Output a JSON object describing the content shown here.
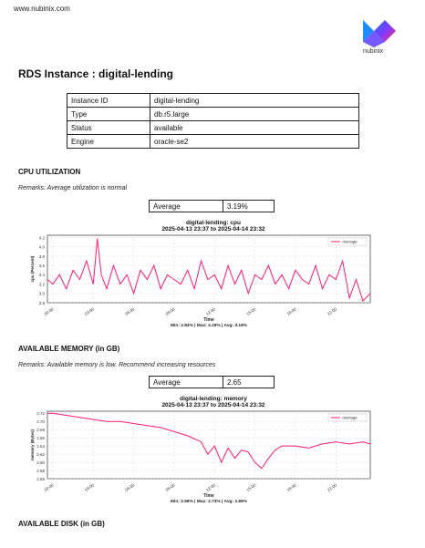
{
  "header": {
    "url": "www.nubinix.com",
    "logo_text": "nubinix"
  },
  "page_title": "RDS Instance : digital-lending",
  "instance_table": [
    {
      "label": "Instance ID",
      "value": "digital-lending"
    },
    {
      "label": "Type",
      "value": "db.r5.large"
    },
    {
      "label": "Status",
      "value": "available"
    },
    {
      "label": "Engine",
      "value": "oracle-se2"
    }
  ],
  "cpu": {
    "heading": "CPU UTILIZATION",
    "remarks": "Remarks: Average utilization is normal",
    "avg_label": "Average",
    "avg_value": "3.19%"
  },
  "memory": {
    "heading": "AVAILABLE MEMORY (in GB)",
    "remarks": "Remarks: Available memory is low. Recommend increasing resources",
    "avg_label": "Average",
    "avg_value": "2.65"
  },
  "disk": {
    "heading": "AVAILABLE DISK (in GB)"
  },
  "chart_data": [
    {
      "type": "line",
      "title": "digital-lending: cpu",
      "subtitle": "2025-04-13 23:37 to 2025-04-14 23:32",
      "xlabel": "Time",
      "ylabel": "cpu (Percent)",
      "stats": "Min: 2.84% | Max: 4.18% | Avg: 3.19%",
      "x_ticks": [
        "00:00",
        "03:00",
        "06:00",
        "09:00",
        "12:00",
        "15:00",
        "18:00",
        "21:00"
      ],
      "y_ticks": [
        2.8,
        3.0,
        3.2,
        3.4,
        3.6,
        3.8,
        4.0,
        4.2
      ],
      "ylim": [
        2.8,
        4.25
      ],
      "x_range_hours": [
        -0.4,
        23.55
      ],
      "legend": "top-right",
      "grid": true,
      "color": "#ff1a75",
      "series": [
        {
          "name": "Average",
          "x": [
            -0.4,
            0,
            0.5,
            1,
            1.5,
            2,
            2.5,
            3,
            3.3,
            3.6,
            4,
            4.5,
            5,
            5.5,
            6,
            6.5,
            7,
            7.5,
            8,
            8.5,
            9,
            9.5,
            10,
            10.5,
            11,
            11.5,
            12,
            12.5,
            13,
            13.5,
            14,
            14.5,
            15,
            15.5,
            16,
            16.5,
            17,
            17.5,
            18,
            18.5,
            19,
            19.5,
            20,
            20.5,
            21,
            21.5,
            22,
            22.5,
            23,
            23.55
          ],
          "y": [
            3.3,
            3.2,
            3.4,
            3.1,
            3.5,
            3.3,
            3.7,
            3.2,
            4.18,
            3.4,
            3.1,
            3.6,
            3.2,
            3.4,
            3.0,
            3.5,
            3.3,
            3.6,
            3.1,
            3.4,
            3.3,
            3.2,
            3.5,
            3.1,
            3.7,
            3.3,
            3.4,
            3.1,
            3.6,
            3.2,
            3.5,
            3.0,
            3.4,
            3.3,
            3.6,
            3.2,
            3.4,
            3.1,
            3.5,
            3.3,
            3.2,
            3.6,
            3.1,
            3.4,
            3.3,
            3.7,
            2.9,
            3.3,
            2.84,
            3.0
          ]
        }
      ]
    },
    {
      "type": "line",
      "title": "digital-lending: memory",
      "subtitle": "2025-04-13 23:37 to 2025-04-14 23:32",
      "xlabel": "Time",
      "ylabel": "memory (Bytes)",
      "stats": "Min: 2.58% | Max: 2.73% | Avg: 2.65%",
      "x_ticks": [
        "00:00",
        "03:00",
        "06:00",
        "09:00",
        "12:00",
        "15:00",
        "18:00",
        "21:00"
      ],
      "y_ticks": [
        2.56,
        2.58,
        2.6,
        2.62,
        2.64,
        2.66,
        2.68,
        2.7,
        2.72
      ],
      "ylim": [
        2.56,
        2.725
      ],
      "x_range_hours": [
        -0.4,
        23.55
      ],
      "legend": "top-right",
      "grid": true,
      "color": "#ff1a75",
      "series": [
        {
          "name": "Average",
          "x": [
            -0.4,
            0,
            1,
            2,
            3,
            4,
            5,
            6,
            7,
            8,
            9,
            10,
            11,
            11.5,
            12,
            12.5,
            13,
            13.5,
            14,
            14.5,
            15,
            15.5,
            16,
            16.5,
            17,
            18,
            19,
            20,
            21,
            22,
            23,
            23.55
          ],
          "y": [
            2.72,
            2.72,
            2.715,
            2.71,
            2.705,
            2.7,
            2.7,
            2.695,
            2.69,
            2.685,
            2.675,
            2.665,
            2.65,
            2.62,
            2.64,
            2.6,
            2.635,
            2.61,
            2.63,
            2.625,
            2.6,
            2.585,
            2.61,
            2.63,
            2.64,
            2.64,
            2.635,
            2.645,
            2.65,
            2.645,
            2.65,
            2.645
          ]
        }
      ]
    }
  ]
}
